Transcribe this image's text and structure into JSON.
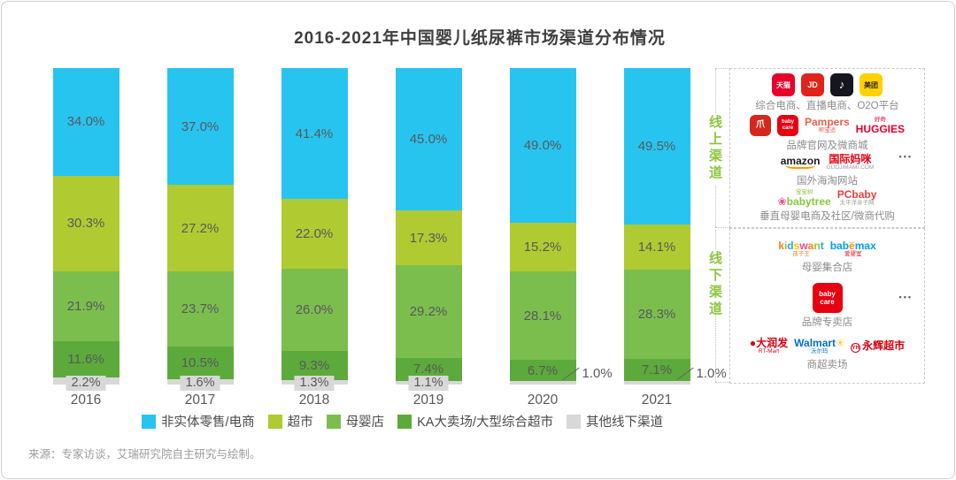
{
  "title": "2016-2021年中国婴儿纸尿裤市场渠道分布情况",
  "source": "来源：专家访谈，艾瑞研究院自主研究与绘制。",
  "side_labels": {
    "online": "线上渠道",
    "offline": "线下渠道"
  },
  "chart_data": {
    "type": "bar",
    "subtype": "100-percent-stacked-column",
    "categories": [
      "2016",
      "2017",
      "2018",
      "2019",
      "2020",
      "2021"
    ],
    "series": [
      {
        "name": "非实体零售/电商",
        "color": "#27C4F0",
        "values": [
          34.0,
          37.0,
          41.4,
          45.0,
          49.0,
          49.5
        ]
      },
      {
        "name": "超市",
        "color": "#AFCB31",
        "values": [
          30.3,
          27.2,
          22.0,
          17.3,
          15.2,
          14.1
        ]
      },
      {
        "name": "母婴店",
        "color": "#7CBE4E",
        "values": [
          21.9,
          23.7,
          26.0,
          29.2,
          28.1,
          28.3
        ]
      },
      {
        "name": "KA大卖场/大型综合超市",
        "color": "#5CAA3B",
        "values": [
          11.6,
          10.5,
          9.3,
          7.4,
          6.7,
          7.1
        ]
      },
      {
        "name": "其他线下渠道",
        "color": "#D8D8D8",
        "values": [
          2.2,
          1.6,
          1.3,
          1.1,
          1.0,
          1.0
        ]
      }
    ],
    "value_suffix": "%",
    "ylim": [
      0,
      100
    ],
    "grid": false,
    "legend_position": "bottom"
  },
  "online_panel": {
    "rows": [
      {
        "icons": [
          "tmall",
          "jd",
          "douyin",
          "meituan"
        ],
        "caption": "综合电商、直播电商、O2O平台"
      },
      {
        "icons": [
          "redbrand",
          "babycare",
          "pampers",
          "huggies"
        ],
        "caption": "品牌官网及微商城"
      },
      {
        "icons": [
          "amazon",
          "guojimami"
        ],
        "caption": "国外海淘网站"
      },
      {
        "icons": [
          "babytree",
          "pcbaby"
        ],
        "caption": "垂直母婴电商及社区/微商代购"
      }
    ],
    "more": "•••"
  },
  "offline_panel": {
    "rows": [
      {
        "icons": [
          "kidswant",
          "babemax"
        ],
        "caption": "母婴集合店"
      },
      {
        "icons": [
          "babycare-big"
        ],
        "caption": "品牌专卖店"
      },
      {
        "icons": [
          "rtmart",
          "walmart",
          "yonghui"
        ],
        "caption": "商超卖场"
      }
    ],
    "more": "•••"
  },
  "logos": {
    "tmall": {
      "tile": true,
      "bg": "#E8002A",
      "fg": "#FFFFFF",
      "text": "天猫",
      "fs": 8
    },
    "jd": {
      "tile": true,
      "bg": "#E2231A",
      "fg": "#FFFFFF",
      "text": "JD",
      "fs": 9
    },
    "douyin": {
      "tile": true,
      "bg": "#16161E",
      "fg": "#FFFFFF",
      "text": "♪",
      "fs": 13
    },
    "meituan": {
      "tile": true,
      "bg": "#FFD100",
      "fg": "#2B2B2B",
      "text": "美团",
      "fs": 8
    },
    "redbrand": {
      "tile": true,
      "bg": "#D4281F",
      "fg": "#FFFFFF",
      "text": "爪",
      "fs": 10,
      "size": 24
    },
    "babycare": {
      "tile": true,
      "bg": "#E60012",
      "fg": "#FFFFFF",
      "text": "baby care",
      "fs": 6,
      "size": 24
    },
    "babycare-big": {
      "tile": true,
      "bg": "#E60012",
      "fg": "#FFFFFF",
      "text": "baby care",
      "fs": 8,
      "size": 34
    },
    "pampers": {
      "parts": [
        {
          "t": "Pampers",
          "c": "#E8604C"
        }
      ],
      "sub": {
        "t": "帮宝适",
        "c": "#E8604C"
      }
    },
    "huggies": {
      "parts": [
        {
          "t": "HUGGIES",
          "c": "#E4002B"
        }
      ],
      "sub": {
        "t": "好奇",
        "c": "#E4002B"
      },
      "subTop": true
    },
    "amazon": {
      "parts": [
        {
          "t": "amazon",
          "c": "#1A1A1A"
        }
      ],
      "smile": true
    },
    "guojimami": {
      "parts": [
        {
          "t": "国际妈咪",
          "c": "#E60012"
        }
      ],
      "sub": {
        "t": "GUOJIMAMI.COM",
        "c": "#9B9B9B"
      }
    },
    "babytree": {
      "parts": [
        {
          "t": "❀",
          "c": "#EC4898"
        },
        {
          "t": "babytree",
          "c": "#8DC63F"
        }
      ],
      "sub": {
        "t": "宝宝树",
        "c": "#8DC63F"
      },
      "subTop": true
    },
    "pcbaby": {
      "parts": [
        {
          "t": "PCbaby",
          "c": "#E5413D"
        }
      ],
      "sub": {
        "t": "太平洋亲子网",
        "c": "#9B9B9B"
      }
    },
    "kidswant": {
      "parts": [
        {
          "t": "k",
          "c": "#F58220"
        },
        {
          "t": "i",
          "c": "#8DC63F"
        },
        {
          "t": "d",
          "c": "#29ABE2"
        },
        {
          "t": "s",
          "c": "#F5C400"
        },
        {
          "t": "w",
          "c": "#EC4898"
        },
        {
          "t": "a",
          "c": "#F58220"
        },
        {
          "t": "n",
          "c": "#8DC63F"
        },
        {
          "t": "t",
          "c": "#29ABE2"
        }
      ],
      "sub": {
        "t": "孩子王",
        "c": "#F58220"
      }
    },
    "babemax": {
      "parts": [
        {
          "t": "bab",
          "c": "#00A0E9"
        },
        {
          "t": "ë",
          "c": "#F39800"
        },
        {
          "t": "max",
          "c": "#00A0E9"
        }
      ],
      "sub": {
        "t": "爱婴室",
        "c": "#E60012"
      }
    },
    "rtmart": {
      "parts": [
        {
          "t": "●",
          "c": "#D6000F"
        },
        {
          "t": "大润发",
          "c": "#D6000F"
        }
      ],
      "sub": {
        "t": "RT-Mart",
        "c": "#D6000F"
      }
    },
    "walmart": {
      "parts": [
        {
          "t": "Walmart",
          "c": "#0071CE"
        },
        {
          "t": "✳",
          "c": "#FFC220"
        }
      ],
      "sub": {
        "t": "沃尔玛",
        "c": "#0071CE"
      }
    },
    "yonghui": {
      "badge": {
        "t": "YH",
        "c": "#D6000F"
      },
      "parts": [
        {
          "t": "永辉超市",
          "c": "#D6000F"
        }
      ]
    }
  }
}
